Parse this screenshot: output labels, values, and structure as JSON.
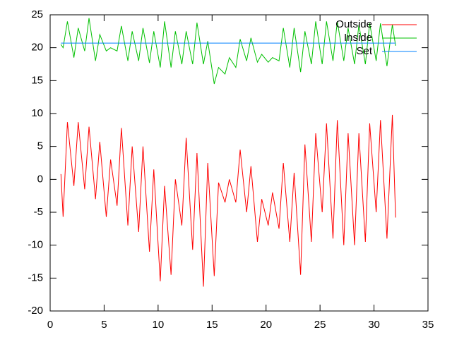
{
  "chart_data": {
    "type": "line",
    "x": [
      1,
      1.2,
      1.6,
      2.2,
      2.6,
      3.2,
      3.6,
      4.2,
      4.6,
      5.2,
      5.6,
      6.2,
      6.6,
      7.2,
      7.6,
      8.2,
      8.6,
      9.2,
      9.6,
      10.2,
      10.6,
      11.2,
      11.6,
      12.2,
      12.6,
      13.2,
      13.6,
      14.2,
      14.6,
      15.2,
      15.6,
      16.2,
      16.6,
      17.2,
      17.6,
      18.2,
      18.6,
      19.2,
      19.6,
      20.2,
      20.6,
      21.2,
      21.6,
      22.2,
      22.6,
      23.2,
      23.6,
      24.2,
      24.6,
      25.2,
      25.6,
      26.2,
      26.6,
      27.2,
      27.6,
      28.2,
      28.6,
      29.2,
      29.6,
      30.2,
      30.6,
      31.2,
      31.7,
      32
    ],
    "series": [
      {
        "name": "Outside",
        "color": "#ff0000",
        "values": [
          0.8,
          -5.7,
          8.7,
          -1,
          8.7,
          -1.5,
          8,
          -3,
          5.7,
          -5.7,
          3,
          -4,
          7.8,
          -7,
          5,
          -8,
          5,
          -11,
          1.5,
          -15.5,
          -1,
          -14.5,
          0,
          -7,
          6.3,
          -10.7,
          4,
          -16.3,
          2.5,
          -14.7,
          -0.5,
          -3.5,
          0,
          -3.5,
          4.5,
          -5,
          2,
          -9.5,
          -3,
          -7,
          -2,
          -7.5,
          2.5,
          -9.5,
          1,
          -14.5,
          5.3,
          -9.5,
          7,
          -5,
          8.5,
          -9,
          9,
          -10,
          7,
          -10,
          7,
          -9.5,
          8.5,
          -5,
          9,
          -9,
          9.8,
          -5.8
        ]
      },
      {
        "name": "Inside",
        "color": "#00c000",
        "values": [
          20.5,
          20,
          24,
          18.5,
          23,
          19.5,
          24.5,
          18,
          22,
          19.5,
          20,
          19.5,
          23.3,
          18,
          22.5,
          18,
          23,
          17.7,
          22.5,
          17,
          24,
          17,
          22.5,
          17.5,
          22.5,
          17.5,
          23.8,
          17.5,
          21,
          14.5,
          17,
          16,
          18.5,
          17,
          21.3,
          18,
          21.5,
          17.8,
          19,
          17.8,
          18.5,
          18,
          23,
          17,
          23,
          16.3,
          22.5,
          17.5,
          24,
          17.5,
          24,
          18,
          24,
          18,
          23,
          17.5,
          23.5,
          17.5,
          23.7,
          18,
          23.7,
          17.2,
          23.5,
          20.3
        ]
      },
      {
        "name": "Set",
        "color": "#0080ff",
        "values": [
          20.7,
          20.7,
          20.7,
          20.7,
          20.7,
          20.7,
          20.7,
          20.7,
          20.7,
          20.7,
          20.7,
          20.7,
          20.7,
          20.7,
          20.7,
          20.7,
          20.7,
          20.7,
          20.7,
          20.7,
          20.7,
          20.7,
          20.7,
          20.7,
          20.7,
          20.7,
          20.7,
          20.7,
          20.7,
          20.7,
          20.7,
          20.7,
          20.7,
          20.7,
          20.7,
          20.7,
          20.7,
          20.7,
          20.7,
          20.7,
          20.7,
          20.7,
          20.7,
          20.7,
          20.7,
          20.7,
          20.7,
          20.7,
          20.7,
          20.7,
          20.7,
          20.7,
          20.7,
          20.7,
          20.7,
          20.7,
          20.7,
          20.7,
          20.7,
          20.7,
          20.7,
          20.7,
          20.7,
          20.7
        ]
      }
    ],
    "xlim": [
      0,
      35
    ],
    "xticks": [
      0,
      5,
      10,
      15,
      20,
      25,
      30,
      35
    ],
    "ylim": [
      -20,
      25
    ],
    "yticks": [
      -20,
      -15,
      -10,
      -5,
      0,
      5,
      10,
      15,
      20,
      25
    ],
    "grid": false,
    "legend": "top-right"
  }
}
